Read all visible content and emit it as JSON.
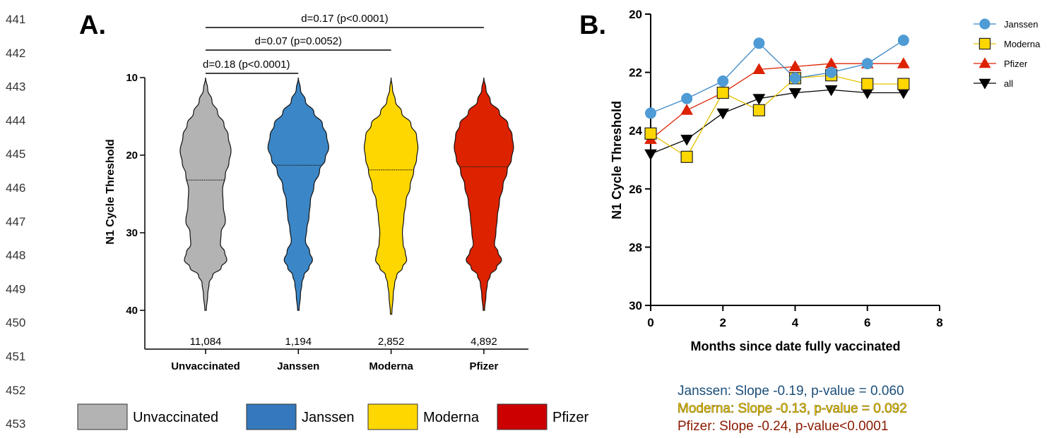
{
  "line_numbers": [
    "441",
    "442",
    "443",
    "444",
    "445",
    "446",
    "447",
    "448",
    "449",
    "450",
    "451",
    "452",
    "453"
  ],
  "colors": {
    "Unvaccinated": "#b3b3b3",
    "Janssen": "#3b86c6",
    "Moderna": "#ffd700",
    "Pfizer": "#dd2200",
    "all": "#000000",
    "janssen_text": "#1c4f7a",
    "pfizer_text": "#8a1a00"
  },
  "chart_data": [
    {
      "type": "violin",
      "panel_label": "A.",
      "ylabel": "N1 Cycle Threshold",
      "ylim": [
        10,
        45
      ],
      "y_inverted": true,
      "yticks": [
        "10",
        "20",
        "30",
        "40"
      ],
      "categories": [
        "Unvaccinated",
        "Janssen",
        "Moderna",
        "Pfizer"
      ],
      "medians": [
        23.2,
        21.3,
        21.9,
        21.5
      ],
      "counts": [
        "11,084",
        "1,194",
        "2,852",
        "4,892"
      ],
      "distribution_ranges": [
        [
          10,
          40
        ],
        [
          10,
          40
        ],
        [
          10,
          40.5
        ],
        [
          10,
          40
        ]
      ],
      "significance": [
        {
          "from": "Unvaccinated",
          "to": "Pfizer",
          "label": "d=0.17 (p<0.0001)"
        },
        {
          "from": "Unvaccinated",
          "to": "Moderna",
          "label": "d=0.07 (p=0.0052)"
        },
        {
          "from": "Unvaccinated",
          "to": "Janssen",
          "label": "d=0.18 (p<0.0001)"
        }
      ],
      "legend": [
        "Unvaccinated",
        "Janssen",
        "Moderna",
        "Pfizer"
      ],
      "legend_placement": "bottom"
    },
    {
      "type": "line",
      "panel_label": "B.",
      "xlabel": "Months since date fully vaccinated",
      "ylabel": "N1 Cycle Threshold",
      "xlim": [
        0,
        8
      ],
      "ylim": [
        20,
        30
      ],
      "y_inverted": true,
      "xticks": [
        "0",
        "2",
        "4",
        "6",
        "8"
      ],
      "yticks": [
        "20",
        "22",
        "24",
        "26",
        "28",
        "30"
      ],
      "x": [
        0,
        1,
        2,
        3,
        4,
        5,
        6,
        7
      ],
      "series": [
        {
          "name": "Janssen",
          "marker": "circle",
          "values": [
            23.4,
            22.9,
            22.3,
            21.0,
            22.2,
            22.0,
            21.7,
            20.9
          ]
        },
        {
          "name": "Moderna",
          "marker": "square",
          "values": [
            24.1,
            24.9,
            22.7,
            23.3,
            22.2,
            22.1,
            22.4,
            22.4
          ]
        },
        {
          "name": "Pfizer",
          "marker": "triangle-up",
          "values": [
            24.3,
            23.3,
            22.7,
            21.9,
            21.8,
            21.7,
            21.7,
            21.7
          ]
        },
        {
          "name": "all",
          "marker": "triangle-down",
          "values": [
            24.8,
            24.3,
            23.4,
            22.9,
            22.7,
            22.6,
            22.7,
            22.7
          ]
        }
      ],
      "legend_placement": "top-right",
      "annotations": [
        "Janssen: Slope -0.19, p-value = 0.060",
        "Moderna: Slope -0.13, p-value = 0.092",
        "Pfizer: Slope -0.24, p-value<0.0001"
      ]
    }
  ]
}
